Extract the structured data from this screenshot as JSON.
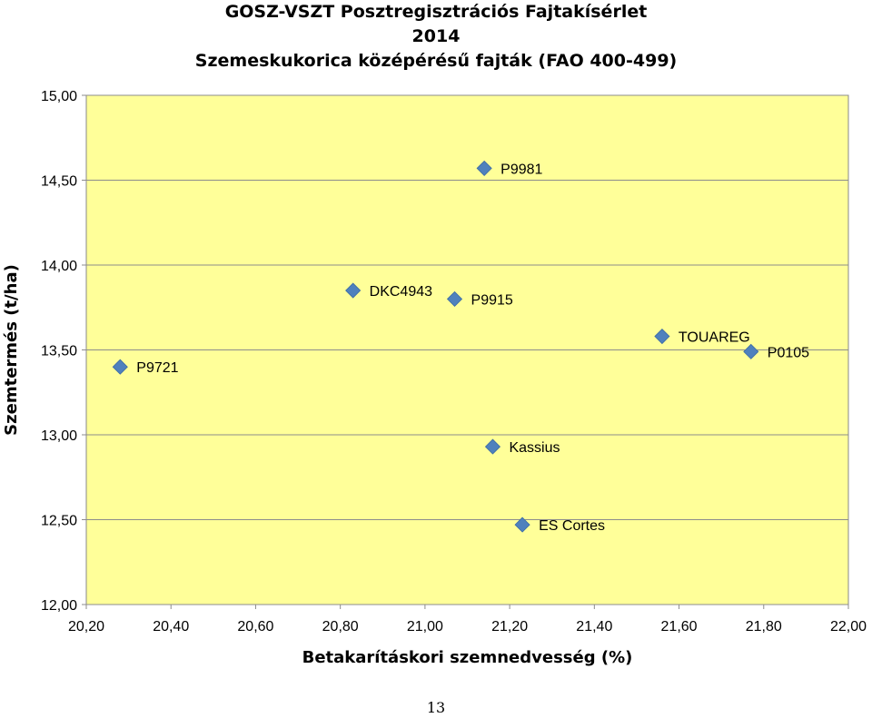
{
  "chart_data": {
    "type": "scatter",
    "title": "GOSZ-VSZT Posztregisztrációs Fajtakísérlet",
    "title_line2": "2014",
    "subtitle": "Szemeskukorica középérésű fajták (FAO 400-499)",
    "xlabel": "Betakarításkori szemnedvesség (%)",
    "ylabel": "Szemtermés (t/ha)",
    "xlim": [
      20.2,
      22.0
    ],
    "ylim": [
      12.0,
      15.0
    ],
    "x_ticks": [
      "20,20",
      "20,40",
      "20,60",
      "20,80",
      "21,00",
      "21,20",
      "21,40",
      "21,60",
      "21,80",
      "22,00"
    ],
    "y_ticks": [
      "12,00",
      "12,50",
      "13,00",
      "13,50",
      "14,00",
      "14,50",
      "15,00"
    ],
    "grid": "horizontal",
    "marker": "diamond",
    "marker_color": "#4f81bd",
    "plot_background": "#ffff99",
    "points": [
      {
        "label": "P9981",
        "x": 21.14,
        "y": 14.57
      },
      {
        "label": "DKC4943",
        "x": 20.83,
        "y": 13.85
      },
      {
        "label": "P9915",
        "x": 21.07,
        "y": 13.8
      },
      {
        "label": "TOUAREG",
        "x": 21.56,
        "y": 13.58
      },
      {
        "label": "P0105",
        "x": 21.77,
        "y": 13.49
      },
      {
        "label": "P9721",
        "x": 20.28,
        "y": 13.4
      },
      {
        "label": "Kassius",
        "x": 21.16,
        "y": 12.93
      },
      {
        "label": "ES Cortes",
        "x": 21.23,
        "y": 12.47
      }
    ]
  },
  "page_number": "13"
}
